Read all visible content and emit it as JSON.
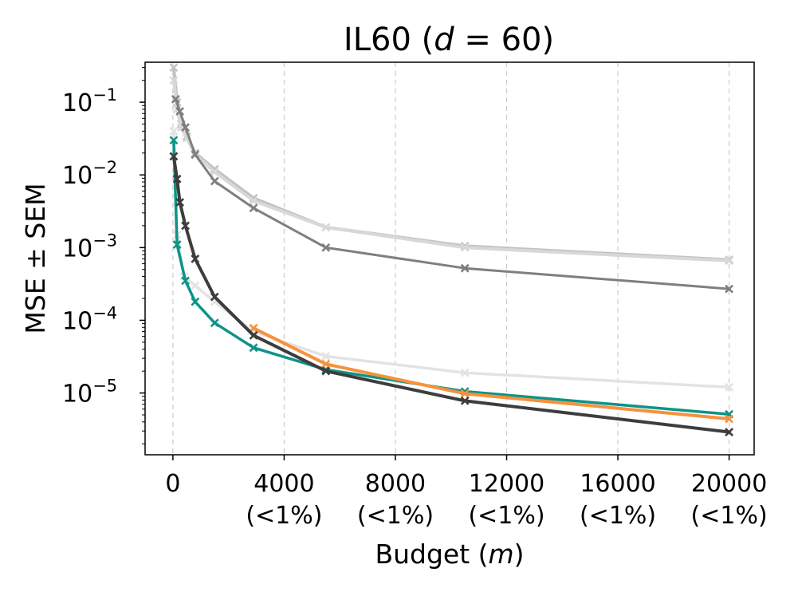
{
  "chart_data": {
    "type": "line",
    "title": "IL60 (",
    "title_var": "d",
    "title_rest": " = 60)",
    "xlabel": "Budget (",
    "xlabel_var": "m",
    "xlabel_end": ")",
    "ylabel": "MSE ± SEM",
    "xlim": [
      -1000,
      20900
    ],
    "ylim_log10": [
      -5.85,
      -0.45
    ],
    "yscale": "log",
    "grid": "vertical dashed",
    "x_ticks": [
      {
        "value": 0,
        "label": "0",
        "sub": ""
      },
      {
        "value": 4000,
        "label": "4000",
        "sub": "(<1%)"
      },
      {
        "value": 8000,
        "label": "8000",
        "sub": "(<1%)"
      },
      {
        "value": 12000,
        "label": "12000",
        "sub": "(<1%)"
      },
      {
        "value": 16000,
        "label": "16000",
        "sub": "(<1%)"
      },
      {
        "value": 20000,
        "label": "20000",
        "sub": "(<1%)"
      }
    ],
    "y_ticks": [
      {
        "exp": -1,
        "base": "10",
        "sup": "−1"
      },
      {
        "exp": -2,
        "base": "10",
        "sup": "−2"
      },
      {
        "exp": -3,
        "base": "10",
        "sup": "−3"
      },
      {
        "exp": -4,
        "base": "10",
        "sup": "−4"
      },
      {
        "exp": -5,
        "base": "10",
        "sup": "−5"
      }
    ],
    "series": [
      {
        "name": "light-gray-a",
        "color": "#c2c2c2",
        "width": 4,
        "x": [
          30,
          150,
          300,
          500,
          800,
          1500,
          2900,
          5500,
          10500,
          20000
        ],
        "y": [
          0.3,
          0.1,
          0.05,
          0.034,
          0.02,
          0.012,
          0.0048,
          0.0019,
          0.00105,
          0.00068
        ]
      },
      {
        "name": "lighter-gray-b",
        "color": "#d8d8d8",
        "width": 4,
        "x": [
          30,
          150,
          300,
          500,
          800,
          1500,
          2900,
          5500,
          10500,
          20000
        ],
        "y": [
          0.2,
          0.08,
          0.045,
          0.032,
          0.019,
          0.011,
          0.0044,
          0.0019,
          0.001,
          0.00066
        ]
      },
      {
        "name": "mid-gray",
        "color": "#7f7f7f",
        "width": 3,
        "x": [
          100,
          250,
          450,
          800,
          1500,
          2900,
          5500,
          10500,
          20000
        ],
        "y": [
          0.11,
          0.075,
          0.045,
          0.019,
          0.0082,
          0.0035,
          0.001,
          0.00052,
          0.00027
        ]
      },
      {
        "name": "very-light-gray",
        "color": "#e3e3e3",
        "width": 3.5,
        "x": [
          30,
          150,
          400,
          800,
          1500,
          2900,
          5500,
          10500,
          20000
        ],
        "y": [
          0.04,
          0.0015,
          0.0004,
          0.0003,
          0.00018,
          7e-05,
          3.2e-05,
          1.9e-05,
          1.2e-05
        ]
      },
      {
        "name": "teal",
        "color": "#0d9488",
        "width": 3.5,
        "x": [
          30,
          150,
          450,
          800,
          1500,
          2900,
          5500,
          10500,
          20000
        ],
        "y": [
          0.03,
          0.0011,
          0.00035,
          0.00018,
          9.2e-05,
          4.2e-05,
          2.1e-05,
          1.05e-05,
          5.1e-06
        ]
      },
      {
        "name": "orange",
        "color": "#f7913d",
        "width": 4,
        "x": [
          2900,
          5500,
          10500,
          20000
        ],
        "y": [
          7.8e-05,
          2.5e-05,
          9.8e-06,
          4.4e-06
        ]
      },
      {
        "name": "dark-gray",
        "color": "#3d3d3d",
        "width": 4,
        "x": [
          30,
          150,
          250,
          450,
          800,
          1500,
          2900,
          5500,
          10500,
          20000
        ],
        "y": [
          0.018,
          0.0088,
          0.0042,
          0.002,
          0.0007,
          0.00021,
          6.2e-05,
          2e-05,
          7.8e-06,
          2.9e-06
        ]
      }
    ]
  }
}
